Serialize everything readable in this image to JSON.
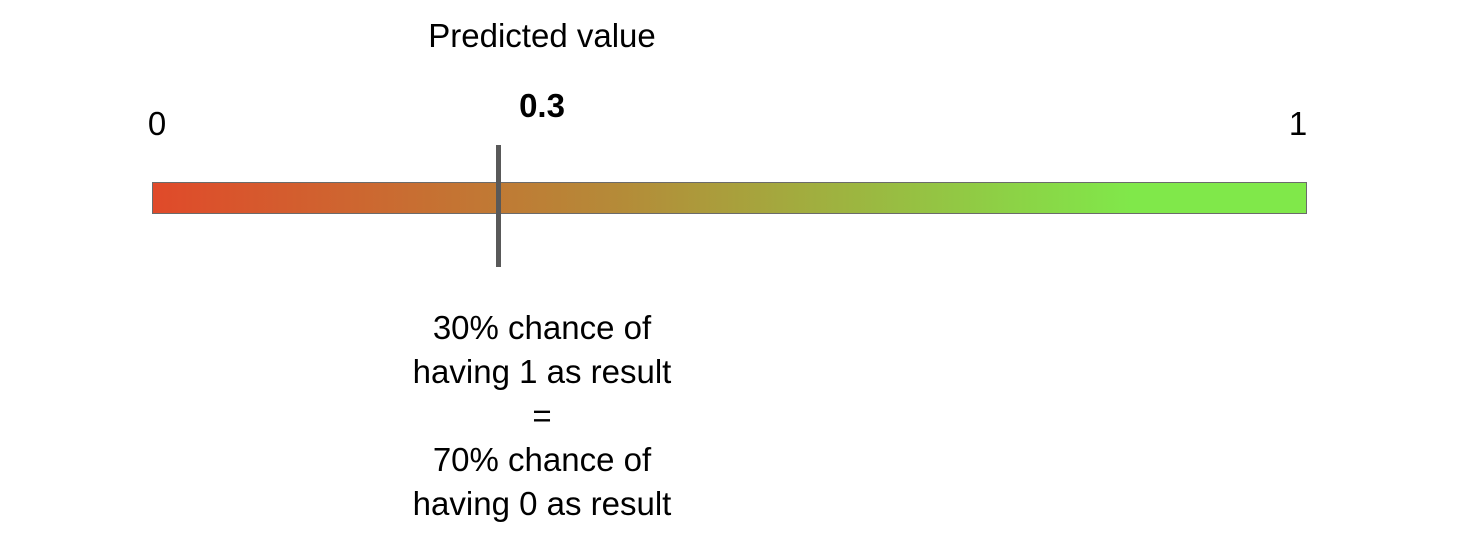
{
  "title": "Predicted value",
  "scale": {
    "min_label": "0",
    "max_label": "1",
    "min": 0,
    "max": 1
  },
  "predicted": {
    "value": 0.3,
    "label": "0.3"
  },
  "gradient": {
    "start_color": "#e04a2a",
    "mid_color": "#b58a38",
    "end_color": "#80e84a"
  },
  "marker_color": "#595959",
  "explanation": {
    "line1": "30% chance of",
    "line2": "having 1 as result",
    "line3": "=",
    "line4": "70% chance of",
    "line5": "having 0 as result"
  }
}
